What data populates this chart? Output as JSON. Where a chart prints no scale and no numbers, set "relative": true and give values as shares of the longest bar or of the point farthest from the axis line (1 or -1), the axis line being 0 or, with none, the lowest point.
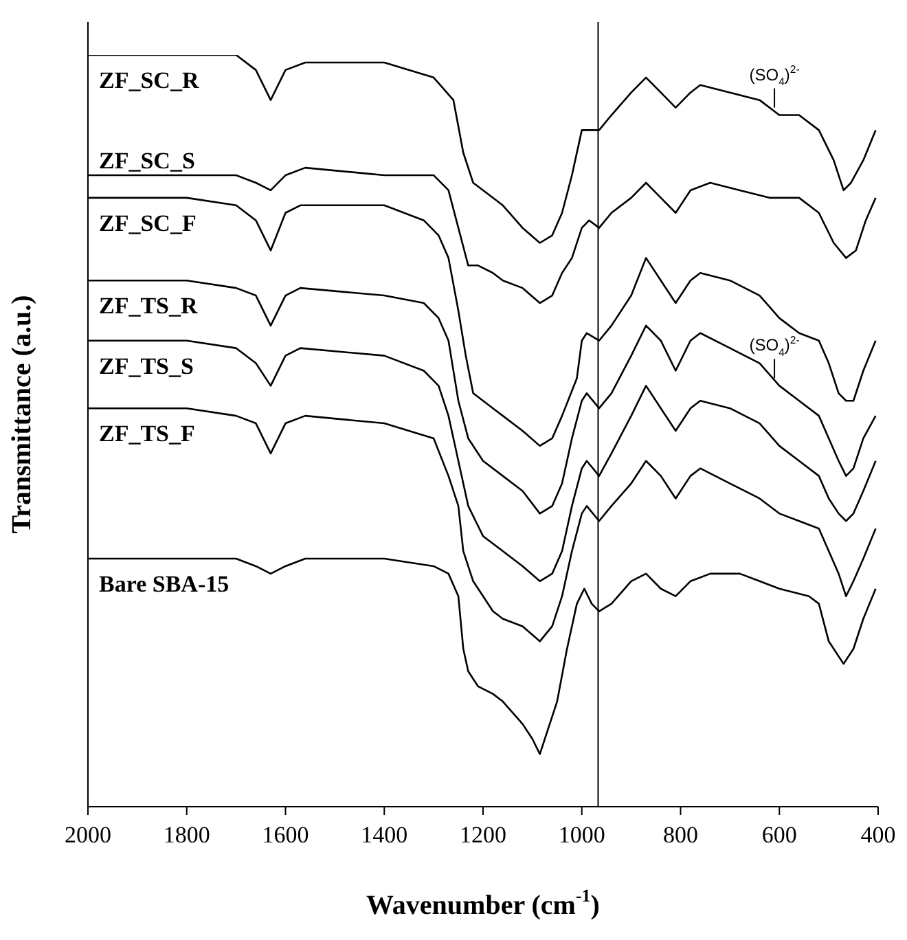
{
  "chart_data": {
    "type": "line",
    "relative": true,
    "xlabel": "Wavenumber (cm$^{-1}$)",
    "ylabel": "Transmittance (a.u.)",
    "xlim": [
      2000,
      400
    ],
    "xticks": [
      2000,
      1800,
      1600,
      1400,
      1200,
      1000,
      800,
      600,
      400
    ],
    "series": [
      {
        "name": "ZF_SC_R",
        "color": "#000000",
        "x": [
          2000,
          1800,
          1700,
          1660,
          1630,
          1600,
          1560,
          1400,
          1300,
          1260,
          1240,
          1220,
          1160,
          1120,
          1085,
          1060,
          1040,
          1020,
          1000,
          985,
          965,
          940,
          900,
          870,
          840,
          810,
          780,
          760,
          700,
          640,
          600,
          560,
          520,
          490,
          470,
          455,
          430,
          405
        ],
        "values": [
          1.0,
          1.0,
          1.0,
          0.98,
          0.94,
          0.98,
          0.99,
          0.99,
          0.97,
          0.94,
          0.87,
          0.83,
          0.8,
          0.77,
          0.75,
          0.76,
          0.79,
          0.84,
          0.9,
          0.9,
          0.9,
          0.92,
          0.95,
          0.97,
          0.95,
          0.93,
          0.95,
          0.96,
          0.95,
          0.94,
          0.92,
          0.92,
          0.9,
          0.86,
          0.82,
          0.83,
          0.86,
          0.9
        ]
      },
      {
        "name": "ZF_SC_S",
        "color": "#000000",
        "x": [
          2000,
          1700,
          1660,
          1630,
          1600,
          1560,
          1400,
          1300,
          1270,
          1250,
          1230,
          1210,
          1180,
          1160,
          1120,
          1085,
          1060,
          1040,
          1020,
          1000,
          985,
          965,
          940,
          900,
          870,
          840,
          810,
          780,
          740,
          680,
          620,
          560,
          520,
          490,
          465,
          445,
          425,
          405
        ],
        "values": [
          0.84,
          0.84,
          0.83,
          0.82,
          0.84,
          0.85,
          0.84,
          0.84,
          0.82,
          0.77,
          0.72,
          0.72,
          0.71,
          0.7,
          0.69,
          0.67,
          0.68,
          0.71,
          0.73,
          0.77,
          0.78,
          0.77,
          0.79,
          0.81,
          0.83,
          0.81,
          0.79,
          0.82,
          0.83,
          0.82,
          0.81,
          0.81,
          0.79,
          0.75,
          0.73,
          0.74,
          0.78,
          0.81
        ]
      },
      {
        "name": "ZF_SC_F",
        "color": "#000000",
        "x": [
          2000,
          1800,
          1700,
          1660,
          1630,
          1600,
          1570,
          1400,
          1320,
          1290,
          1270,
          1250,
          1235,
          1220,
          1180,
          1160,
          1120,
          1085,
          1060,
          1040,
          1010,
          1000,
          990,
          965,
          940,
          900,
          870,
          840,
          810,
          780,
          760,
          700,
          640,
          600,
          560,
          520,
          500,
          480,
          465,
          450,
          430,
          405
        ],
        "values": [
          0.81,
          0.81,
          0.8,
          0.78,
          0.74,
          0.79,
          0.8,
          0.8,
          0.78,
          0.76,
          0.73,
          0.66,
          0.6,
          0.55,
          0.53,
          0.52,
          0.5,
          0.48,
          0.49,
          0.52,
          0.57,
          0.62,
          0.63,
          0.62,
          0.64,
          0.68,
          0.73,
          0.7,
          0.67,
          0.7,
          0.71,
          0.7,
          0.68,
          0.65,
          0.63,
          0.62,
          0.59,
          0.55,
          0.54,
          0.54,
          0.58,
          0.62
        ]
      },
      {
        "name": "ZF_TS_R",
        "color": "#000000",
        "x": [
          2000,
          1800,
          1700,
          1660,
          1630,
          1600,
          1570,
          1400,
          1320,
          1290,
          1270,
          1250,
          1230,
          1200,
          1160,
          1120,
          1085,
          1060,
          1040,
          1020,
          1000,
          990,
          965,
          940,
          900,
          870,
          840,
          810,
          780,
          760,
          700,
          640,
          600,
          560,
          520,
          500,
          480,
          465,
          450,
          430,
          405
        ],
        "values": [
          0.7,
          0.7,
          0.69,
          0.68,
          0.64,
          0.68,
          0.69,
          0.68,
          0.67,
          0.65,
          0.62,
          0.54,
          0.49,
          0.46,
          0.44,
          0.42,
          0.39,
          0.4,
          0.43,
          0.49,
          0.54,
          0.55,
          0.53,
          0.55,
          0.6,
          0.64,
          0.62,
          0.58,
          0.62,
          0.63,
          0.61,
          0.59,
          0.56,
          0.54,
          0.52,
          0.49,
          0.46,
          0.44,
          0.45,
          0.49,
          0.52
        ]
      },
      {
        "name": "ZF_TS_S",
        "color": "#000000",
        "x": [
          2000,
          1800,
          1700,
          1660,
          1630,
          1600,
          1570,
          1400,
          1320,
          1290,
          1270,
          1250,
          1230,
          1200,
          1160,
          1120,
          1085,
          1060,
          1040,
          1020,
          1000,
          990,
          965,
          940,
          900,
          870,
          840,
          810,
          780,
          760,
          700,
          640,
          600,
          560,
          520,
          500,
          480,
          465,
          450,
          430,
          405
        ],
        "values": [
          0.62,
          0.62,
          0.61,
          0.59,
          0.56,
          0.6,
          0.61,
          0.6,
          0.58,
          0.56,
          0.52,
          0.46,
          0.4,
          0.36,
          0.34,
          0.32,
          0.3,
          0.31,
          0.34,
          0.4,
          0.45,
          0.46,
          0.44,
          0.47,
          0.52,
          0.56,
          0.53,
          0.5,
          0.53,
          0.54,
          0.53,
          0.51,
          0.48,
          0.46,
          0.44,
          0.41,
          0.39,
          0.38,
          0.39,
          0.42,
          0.46
        ]
      },
      {
        "name": "ZF_TS_F",
        "color": "#000000",
        "x": [
          2000,
          1800,
          1700,
          1660,
          1630,
          1600,
          1560,
          1400,
          1300,
          1270,
          1250,
          1240,
          1220,
          1180,
          1160,
          1120,
          1085,
          1060,
          1040,
          1020,
          1000,
          990,
          965,
          940,
          900,
          870,
          840,
          810,
          780,
          760,
          700,
          640,
          600,
          560,
          520,
          500,
          480,
          465,
          450,
          430,
          405
        ],
        "values": [
          0.53,
          0.53,
          0.52,
          0.51,
          0.47,
          0.51,
          0.52,
          0.51,
          0.49,
          0.44,
          0.4,
          0.34,
          0.3,
          0.26,
          0.25,
          0.24,
          0.22,
          0.24,
          0.28,
          0.34,
          0.39,
          0.4,
          0.38,
          0.4,
          0.43,
          0.46,
          0.44,
          0.41,
          0.44,
          0.45,
          0.43,
          0.41,
          0.39,
          0.38,
          0.37,
          0.34,
          0.31,
          0.28,
          0.3,
          0.33,
          0.37
        ]
      },
      {
        "name": "Bare SBA-15",
        "color": "#000000",
        "x": [
          2000,
          1800,
          1700,
          1660,
          1630,
          1600,
          1560,
          1400,
          1300,
          1270,
          1250,
          1240,
          1230,
          1210,
          1180,
          1160,
          1120,
          1100,
          1085,
          1070,
          1050,
          1030,
          1010,
          995,
          980,
          965,
          940,
          900,
          870,
          840,
          810,
          780,
          740,
          680,
          640,
          600,
          540,
          520,
          500,
          470,
          450,
          430,
          405
        ],
        "values": [
          0.33,
          0.33,
          0.33,
          0.32,
          0.31,
          0.32,
          0.33,
          0.33,
          0.32,
          0.31,
          0.28,
          0.21,
          0.18,
          0.16,
          0.15,
          0.14,
          0.11,
          0.09,
          0.07,
          0.1,
          0.14,
          0.21,
          0.27,
          0.29,
          0.27,
          0.26,
          0.27,
          0.3,
          0.31,
          0.29,
          0.28,
          0.3,
          0.31,
          0.31,
          0.3,
          0.29,
          0.28,
          0.27,
          0.22,
          0.19,
          0.21,
          0.25,
          0.29
        ]
      }
    ],
    "ref_lines": [
      {
        "axis": "x",
        "value": 967,
        "color": "#000000"
      }
    ],
    "annotations": [
      {
        "text": "(SO$_{4}$)$^{2-}$",
        "x": 610,
        "y": 0.93
      },
      {
        "text": "(SO$_{4}$)$^{2-}$",
        "x": 610,
        "y": 0.57
      }
    ]
  }
}
